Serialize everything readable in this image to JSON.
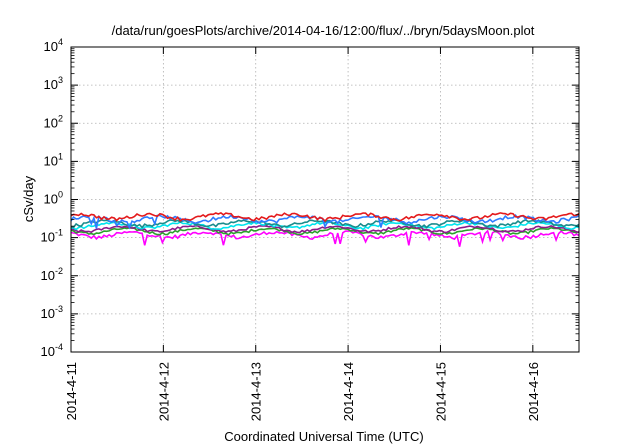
{
  "chart_data": {
    "type": "area",
    "title": "/data/run/goesPlots/archive/2014-04-16/12:00/flux/../bryn/5daysMoon.plot",
    "xlabel": "Coordinated Universal Time (UTC)",
    "ylabel": "cSv/day",
    "xscale": "time",
    "yscale": "log",
    "xlim": [
      "2014-04-11",
      "2014-04-16 12:00"
    ],
    "ylim": [
      0.0001,
      10000
    ],
    "grid": true,
    "x_ticks": [
      {
        "date": "2014-04-11",
        "label": "2014-4-11"
      },
      {
        "date": "2014-04-12",
        "label": "2014-4-12"
      },
      {
        "date": "2014-04-13",
        "label": "2014-4-13"
      },
      {
        "date": "2014-04-14",
        "label": "2014-4-14"
      },
      {
        "date": "2014-04-15",
        "label": "2014-4-15"
      },
      {
        "date": "2014-04-16",
        "label": "2014-4-16"
      }
    ],
    "y_ticks": [
      {
        "value": 0.0001,
        "base": "10",
        "exp": "-4"
      },
      {
        "value": 0.001,
        "base": "10",
        "exp": "-3"
      },
      {
        "value": 0.01,
        "base": "10",
        "exp": "-2"
      },
      {
        "value": 0.1,
        "base": "10",
        "exp": "-1"
      },
      {
        "value": 1,
        "base": "10",
        "exp": "0"
      },
      {
        "value": 10,
        "base": "10",
        "exp": "1"
      },
      {
        "value": 100,
        "base": "10",
        "exp": "2"
      },
      {
        "value": 1000,
        "base": "10",
        "exp": "3"
      },
      {
        "value": 10000,
        "base": "10",
        "exp": "4"
      }
    ],
    "series": [
      {
        "color": "#e41a1c",
        "level": 0.36,
        "spread": 0.1
      },
      {
        "color": "#2e7bff",
        "level": 0.31,
        "spread": 0.11
      },
      {
        "color": "#1a8c8c",
        "level": 0.24,
        "spread": 0.09
      },
      {
        "color": "#00e5ee",
        "level": 0.21,
        "spread": 0.08
      },
      {
        "color": "#8b1a8b",
        "level": 0.17,
        "spread": 0.07
      },
      {
        "color": "#2ca02c",
        "level": 0.15,
        "spread": 0.07
      },
      {
        "color": "#ff00ff",
        "level": 0.12,
        "spread": 0.1
      }
    ]
  }
}
